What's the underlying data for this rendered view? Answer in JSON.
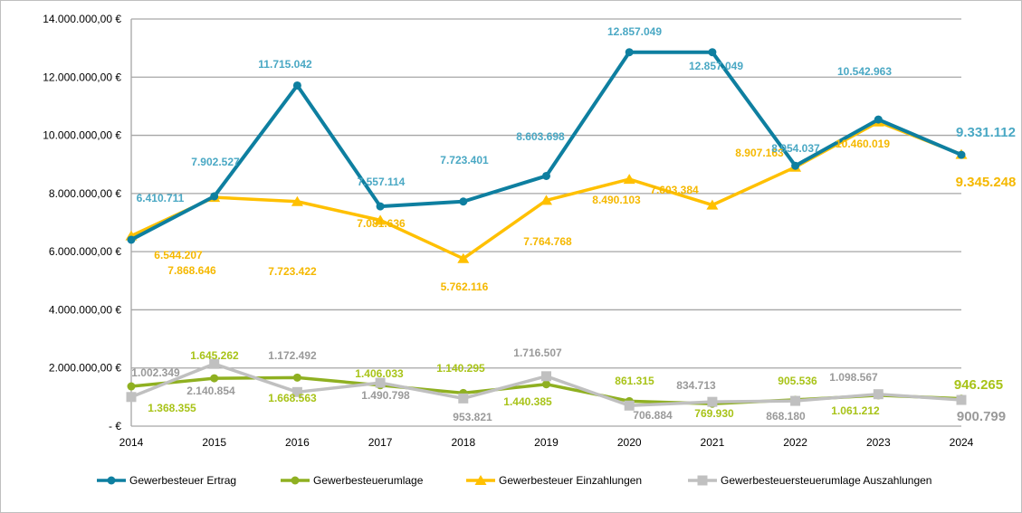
{
  "chart_data": {
    "type": "line",
    "title": "",
    "xlabel": "",
    "ylabel": "",
    "categories": [
      "2014",
      "2015",
      "2016",
      "2017",
      "2018",
      "2019",
      "2020",
      "2021",
      "2022",
      "2023",
      "2024"
    ],
    "ylim": [
      0,
      14000000
    ],
    "y_ticks": [
      "-  €",
      "2.000.000,00 €",
      "4.000.000,00 €",
      "6.000.000,00 €",
      "8.000.000,00 €",
      "10.000.000,00 €",
      "12.000.000,00 €",
      "14.000.000,00 €"
    ],
    "grid": "horizontal",
    "legend_position": "bottom",
    "series": [
      {
        "name": "Gewerbesteuer Ertrag",
        "color": "#0e7fa0",
        "marker": "circle",
        "values": [
          6410711,
          7902527,
          11715042,
          7557114,
          7723401,
          8603698,
          12857049,
          12857049,
          8954037,
          10542963,
          9331112
        ],
        "labels": [
          "6.410.711",
          "7.902.527",
          "11.715.042",
          "7.557.114",
          "7.723.401",
          "8.603.698",
          "12.857.049",
          "12.857.049",
          "8.954.037",
          "10.542.963",
          "9.331.112"
        ],
        "label_color": "#4aa8c4"
      },
      {
        "name": "Gewerbesteuerumlage",
        "color": "#8fb021",
        "marker": "circle",
        "values": [
          1368355,
          1645262,
          1668563,
          1406033,
          1140295,
          1440385,
          861315,
          769930,
          905536,
          1061212,
          946265
        ],
        "labels": [
          "1.368.355",
          "1.645.262",
          "1.668.563",
          "1.406.033",
          "1.140.295",
          "1.440.385",
          "861.315",
          "769.930",
          "905.536",
          "1.061.212",
          "946.265"
        ],
        "label_color": "#a8c318"
      },
      {
        "name": "Gewerbesteuer Einzahlungen",
        "color": "#ffc000",
        "marker": "triangle",
        "values": [
          6544207,
          7868646,
          7723422,
          7081636,
          5762116,
          7764768,
          8490103,
          7603384,
          8907163,
          10460019,
          9345248
        ],
        "labels": [
          "6.544.207",
          "7.868.646",
          "7.723.422",
          "7.081.636",
          "5.762.116",
          "7.764.768",
          "8.490.103",
          "7.603.384",
          "8.907.163",
          "10.460.019",
          "9.345.248"
        ],
        "label_color": "#f5b800"
      },
      {
        "name": "Gewerbesteuersteuerumlage Auszahlungen",
        "color": "#c0c0c0",
        "marker": "square",
        "values": [
          1002349,
          2140854,
          1172492,
          1490798,
          953821,
          1716507,
          706884,
          834713,
          868180,
          1098567,
          900799
        ],
        "labels": [
          "1.002.349",
          "2.140.854",
          "1.172.492",
          "1.490.798",
          "953.821",
          "1.716.507",
          "706.884",
          "834.713",
          "868.180",
          "1.098.567",
          "900.799"
        ],
        "label_color": "#9a9a9a"
      }
    ]
  }
}
